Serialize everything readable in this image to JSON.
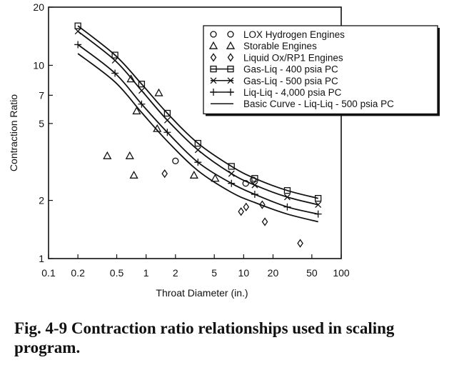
{
  "caption": "Fig. 4-9 Contraction ratio relationships used in scaling program.",
  "chart_data": {
    "type": "scatter",
    "xlabel": "Throat Diameter (in.)",
    "ylabel": "Contraction Ratio",
    "x_scale": "log",
    "y_scale": "log",
    "xlim": [
      0.1,
      100
    ],
    "ylim": [
      1,
      20
    ],
    "x_ticks": [
      {
        "v": 0.1,
        "label": "0.1"
      },
      {
        "v": 0.2,
        "label": "0.2"
      },
      {
        "v": 0.5,
        "label": "0.5"
      },
      {
        "v": 1,
        "label": "1"
      },
      {
        "v": 2,
        "label": "2"
      },
      {
        "v": 5,
        "label": "5"
      },
      {
        "v": 10,
        "label": "10"
      },
      {
        "v": 20,
        "label": "20"
      },
      {
        "v": 50,
        "label": "50"
      },
      {
        "v": 100,
        "label": "100"
      }
    ],
    "y_ticks": [
      {
        "v": 1,
        "label": "1"
      },
      {
        "v": 2,
        "label": "2"
      },
      {
        "v": 5,
        "label": "5"
      },
      {
        "v": 7,
        "label": "7"
      },
      {
        "v": 10,
        "label": "10"
      },
      {
        "v": 20,
        "label": "20"
      }
    ],
    "grid": false,
    "legend_position": "top-right",
    "series": [
      {
        "name": "LOX Hydrogen Engines",
        "legend_symbols": "O O",
        "marker": "circle",
        "line": false,
        "points": [
          [
            2.0,
            3.2
          ],
          [
            10.5,
            2.45
          ],
          [
            12.5,
            2.55
          ]
        ]
      },
      {
        "name": "Storable Engines",
        "legend_symbols": "Δ Δ",
        "marker": "triangle",
        "line": false,
        "points": [
          [
            0.4,
            3.4
          ],
          [
            0.68,
            3.4
          ],
          [
            0.75,
            2.7
          ],
          [
            0.7,
            8.5
          ],
          [
            0.8,
            5.8
          ],
          [
            1.35,
            7.2
          ],
          [
            1.3,
            4.7
          ],
          [
            3.1,
            2.7
          ],
          [
            5.1,
            2.6
          ]
        ]
      },
      {
        "name": "Liquid Ox/RP1 Engines",
        "legend_symbols": "◊ ◊",
        "marker": "diamond",
        "line": false,
        "points": [
          [
            1.55,
            2.75
          ],
          [
            9.4,
            1.75
          ],
          [
            10.6,
            1.85
          ],
          [
            15.5,
            1.9
          ],
          [
            16.5,
            1.55
          ],
          [
            38,
            1.2
          ]
        ]
      },
      {
        "name": "Gas-Liq - 400 psia PC",
        "legend_symbols": "□ □",
        "marker": "square",
        "line": true,
        "points": [
          [
            0.2,
            16.0
          ],
          [
            0.48,
            11.3
          ],
          [
            0.9,
            8.0
          ],
          [
            1.65,
            5.65
          ],
          [
            3.4,
            3.95
          ],
          [
            7.5,
            3.0
          ],
          [
            13.0,
            2.6
          ],
          [
            28.0,
            2.25
          ],
          [
            58.0,
            2.05
          ]
        ]
      },
      {
        "name": "Gas-Liq - 500 psia PC",
        "legend_symbols": "×—×",
        "marker": "x",
        "line": true,
        "points": [
          [
            0.2,
            15.0
          ],
          [
            0.48,
            10.6
          ],
          [
            0.9,
            7.4
          ],
          [
            1.65,
            5.2
          ],
          [
            3.4,
            3.65
          ],
          [
            7.5,
            2.75
          ],
          [
            13.0,
            2.4
          ],
          [
            28.0,
            2.08
          ],
          [
            58.0,
            1.9
          ]
        ]
      },
      {
        "name": "Liq-Liq - 4,000 psia PC",
        "legend_symbols": "+—+",
        "marker": "plus",
        "line": true,
        "points": [
          [
            0.2,
            12.8
          ],
          [
            0.48,
            9.1
          ],
          [
            0.9,
            6.3
          ],
          [
            1.65,
            4.5
          ],
          [
            3.4,
            3.15
          ],
          [
            7.5,
            2.45
          ],
          [
            13.0,
            2.15
          ],
          [
            28.0,
            1.85
          ],
          [
            58.0,
            1.7
          ]
        ]
      },
      {
        "name": "Basic Curve - Liq-Liq - 500 psia PC",
        "legend_symbols": "—",
        "marker": "none",
        "line": true,
        "points": [
          [
            0.2,
            11.5
          ],
          [
            0.48,
            8.2
          ],
          [
            0.9,
            5.7
          ],
          [
            1.65,
            4.05
          ],
          [
            3.4,
            2.85
          ],
          [
            7.5,
            2.2
          ],
          [
            13.0,
            1.95
          ],
          [
            28.0,
            1.7
          ],
          [
            58.0,
            1.55
          ]
        ]
      }
    ]
  }
}
